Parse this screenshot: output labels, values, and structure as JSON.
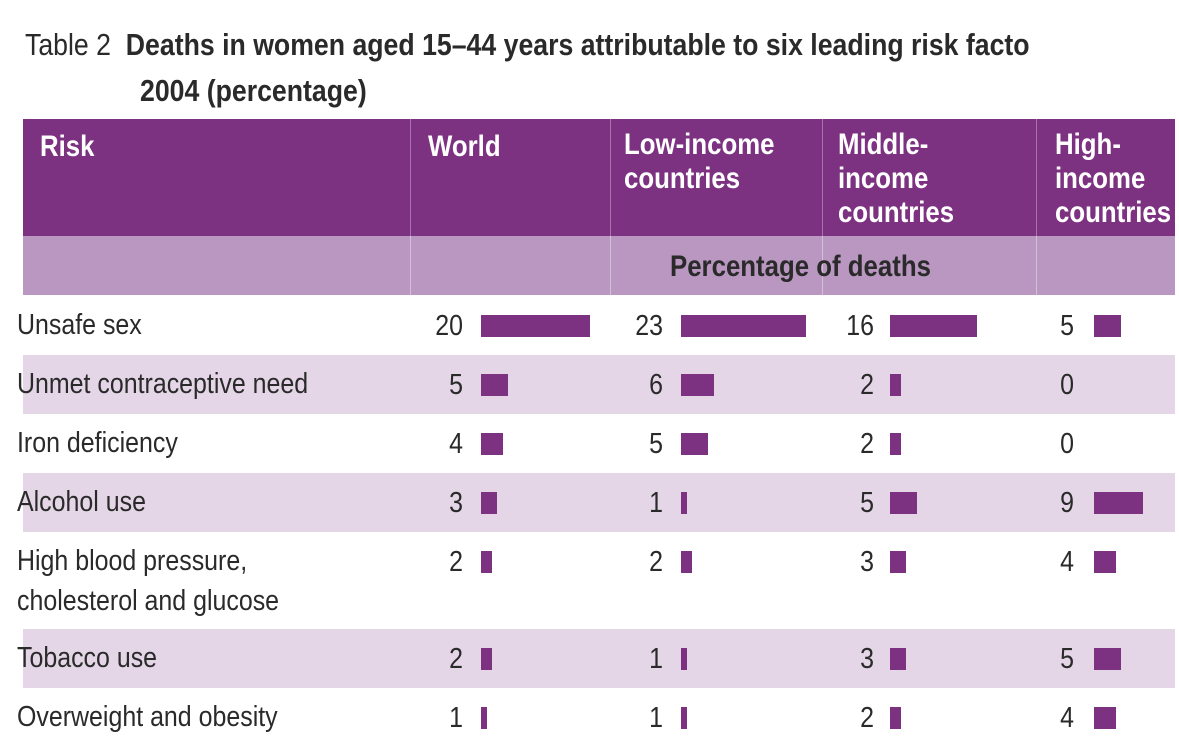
{
  "table_label": "Table 2",
  "title_line1": "Deaths in women aged 15–44 years attributable to six leading risk facto",
  "title_line2": "2004 (percentage)",
  "headers": {
    "risk": "Risk",
    "world": "World",
    "low_income": "Low-income\ncountries",
    "middle_income": "Middle-\nincome\ncountries",
    "high_income": "High-\nincome\ncountries"
  },
  "subheader": "Percentage of deaths",
  "colors": {
    "header": "#7d3181",
    "subheader": "#b997c1",
    "shaded_row": "#e4d6e7",
    "bar": "#7d3181"
  },
  "chart_data": {
    "type": "table",
    "title": "Deaths in women aged 15–44 years attributable to six leading risk facto 2004 (percentage)",
    "columns": [
      "World",
      "Low-income countries",
      "Middle-income countries",
      "High-income countries"
    ],
    "rows": [
      {
        "risk": "Unsafe sex",
        "values": [
          20,
          23,
          16,
          5
        ]
      },
      {
        "risk": "Unmet contraceptive need",
        "values": [
          5,
          6,
          2,
          0
        ]
      },
      {
        "risk": "Iron deficiency",
        "values": [
          4,
          5,
          2,
          0
        ]
      },
      {
        "risk": "Alcohol use",
        "values": [
          3,
          1,
          5,
          9
        ]
      },
      {
        "risk": "High blood pressure,\ncholesterol and glucose",
        "values": [
          2,
          2,
          3,
          4
        ]
      },
      {
        "risk": "Tobacco use",
        "values": [
          2,
          1,
          3,
          5
        ]
      },
      {
        "risk": "Overweight and obesity",
        "values": [
          1,
          1,
          2,
          4
        ]
      }
    ]
  }
}
